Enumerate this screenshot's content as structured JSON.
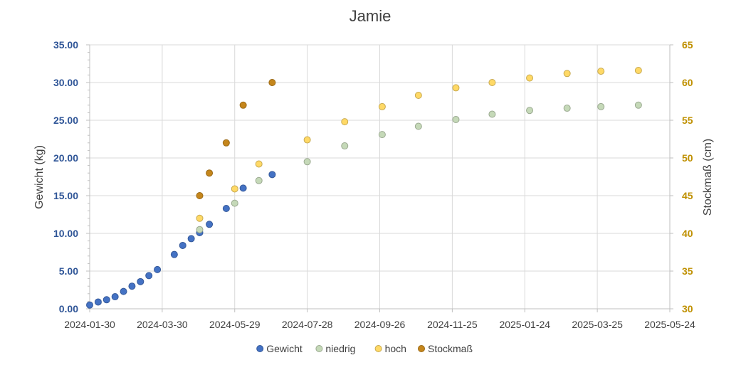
{
  "chart_data": {
    "type": "scatter",
    "title": "Jamie",
    "ylabel": "Gewicht (kg)",
    "y2label": "Stockmaß (cm)",
    "xlim": [
      "2024-01-30",
      "2025-05-24"
    ],
    "x_ticks": [
      "2024-01-30",
      "2024-03-30",
      "2024-05-29",
      "2024-07-28",
      "2024-09-26",
      "2024-11-25",
      "2025-01-24",
      "2025-03-25",
      "2025-05-24"
    ],
    "ylim": [
      0,
      35
    ],
    "y_ticks": [
      "0.00",
      "5.00",
      "10.00",
      "15.00",
      "20.00",
      "25.00",
      "30.00",
      "35.00"
    ],
    "y2lim": [
      30,
      65
    ],
    "y2_ticks": [
      "30",
      "35",
      "40",
      "45",
      "50",
      "55",
      "60",
      "65"
    ],
    "grid": "vertical and horizontal",
    "legend_position": "bottom",
    "series": [
      {
        "name": "Gewicht",
        "axis": "left",
        "color": "#4472c4",
        "points": [
          {
            "x": "2024-01-30",
            "y": 0.5
          },
          {
            "x": "2024-02-06",
            "y": 0.9
          },
          {
            "x": "2024-02-13",
            "y": 1.2
          },
          {
            "x": "2024-02-20",
            "y": 1.6
          },
          {
            "x": "2024-02-27",
            "y": 2.3
          },
          {
            "x": "2024-03-05",
            "y": 3.0
          },
          {
            "x": "2024-03-12",
            "y": 3.6
          },
          {
            "x": "2024-03-19",
            "y": 4.4
          },
          {
            "x": "2024-03-26",
            "y": 5.2
          },
          {
            "x": "2024-04-09",
            "y": 7.2
          },
          {
            "x": "2024-04-16",
            "y": 8.4
          },
          {
            "x": "2024-04-23",
            "y": 9.3
          },
          {
            "x": "2024-04-30",
            "y": 10.1
          },
          {
            "x": "2024-05-08",
            "y": 11.2
          },
          {
            "x": "2024-05-22",
            "y": 13.3
          },
          {
            "x": "2024-06-05",
            "y": 16.0
          },
          {
            "x": "2024-06-29",
            "y": 17.8
          }
        ]
      },
      {
        "name": "niedrig",
        "axis": "left",
        "color": "#c5d9b8",
        "points": [
          {
            "x": "2024-04-30",
            "y": 10.5
          },
          {
            "x": "2024-05-29",
            "y": 14.0
          },
          {
            "x": "2024-06-18",
            "y": 17.0
          },
          {
            "x": "2024-07-28",
            "y": 19.5
          },
          {
            "x": "2024-08-28",
            "y": 21.6
          },
          {
            "x": "2024-09-28",
            "y": 23.1
          },
          {
            "x": "2024-10-28",
            "y": 24.2
          },
          {
            "x": "2024-11-28",
            "y": 25.1
          },
          {
            "x": "2024-12-28",
            "y": 25.8
          },
          {
            "x": "2025-01-28",
            "y": 26.3
          },
          {
            "x": "2025-02-28",
            "y": 26.6
          },
          {
            "x": "2025-03-28",
            "y": 26.8
          },
          {
            "x": "2025-04-28",
            "y": 27.0
          }
        ]
      },
      {
        "name": "hoch",
        "axis": "left",
        "color": "#ffd966",
        "points": [
          {
            "x": "2024-04-30",
            "y": 12.0
          },
          {
            "x": "2024-05-29",
            "y": 15.9
          },
          {
            "x": "2024-06-18",
            "y": 19.2
          },
          {
            "x": "2024-07-28",
            "y": 22.4
          },
          {
            "x": "2024-08-28",
            "y": 24.8
          },
          {
            "x": "2024-09-28",
            "y": 26.8
          },
          {
            "x": "2024-10-28",
            "y": 28.3
          },
          {
            "x": "2024-11-28",
            "y": 29.3
          },
          {
            "x": "2024-12-28",
            "y": 30.0
          },
          {
            "x": "2025-01-28",
            "y": 30.6
          },
          {
            "x": "2025-02-28",
            "y": 31.2
          },
          {
            "x": "2025-03-28",
            "y": 31.5
          },
          {
            "x": "2025-04-28",
            "y": 31.6
          }
        ]
      },
      {
        "name": "Stockmaß",
        "axis": "right",
        "color": "#c5861c",
        "points": [
          {
            "x": "2024-04-30",
            "y": 45
          },
          {
            "x": "2024-05-08",
            "y": 48
          },
          {
            "x": "2024-05-22",
            "y": 52
          },
          {
            "x": "2024-06-05",
            "y": 57
          },
          {
            "x": "2024-06-29",
            "y": 60
          }
        ]
      }
    ]
  }
}
